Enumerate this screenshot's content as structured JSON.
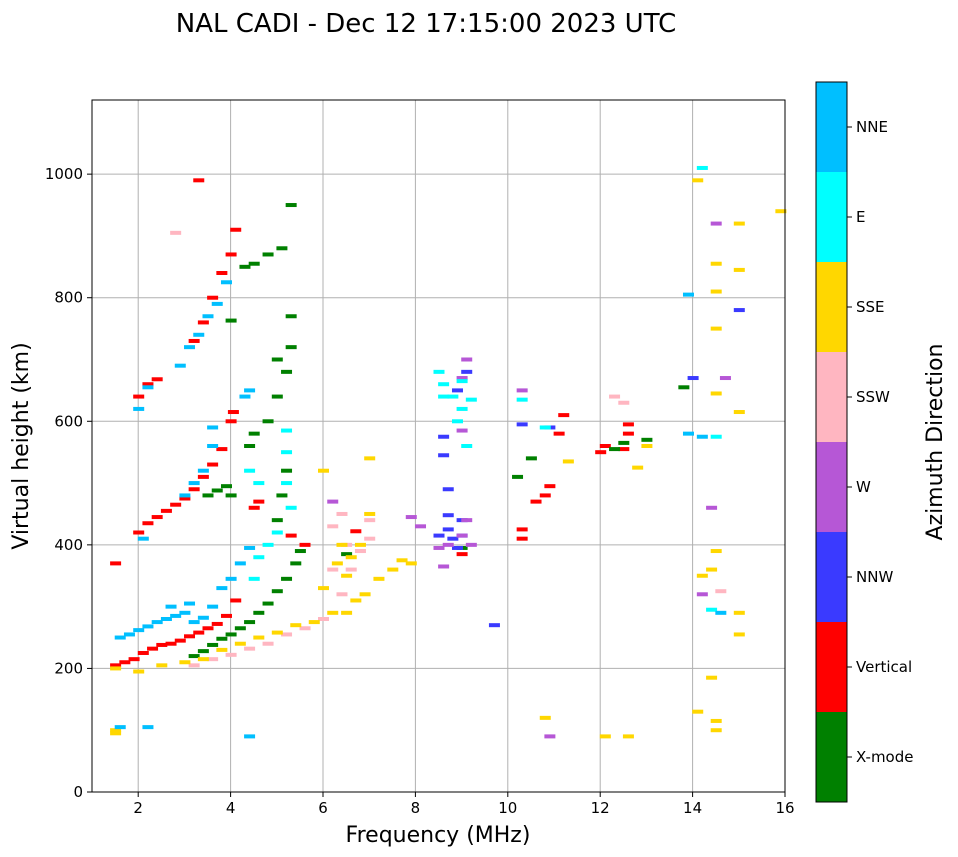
{
  "chart_data": {
    "type": "scatter",
    "title": "NAL CADI - Dec 12 17:15:00 2023 UTC",
    "xlabel": "Frequency (MHz)",
    "ylabel": "Virtual height (km)",
    "xlim": [
      1,
      16
    ],
    "ylim": [
      0,
      1120
    ],
    "xticks": [
      2,
      4,
      6,
      8,
      10,
      12,
      14,
      16
    ],
    "yticks": [
      0,
      200,
      400,
      600,
      800,
      1000
    ],
    "grid": true,
    "colorbar": {
      "label": "Azimuth Direction",
      "categories": [
        {
          "name": "X-mode",
          "color": "#008000"
        },
        {
          "name": "Vertical",
          "color": "#ff0000"
        },
        {
          "name": "NNW",
          "color": "#3a3aff"
        },
        {
          "name": "W",
          "color": "#b657d6"
        },
        {
          "name": "SSW",
          "color": "#ffb6c1"
        },
        {
          "name": "SSE",
          "color": "#ffd700"
        },
        {
          "name": "E",
          "color": "#00ffff"
        },
        {
          "name": "NNE",
          "color": "#00bfff"
        }
      ]
    },
    "series": [
      {
        "name": "Vertical",
        "points": [
          [
            1.5,
            205
          ],
          [
            1.7,
            210
          ],
          [
            1.9,
            215
          ],
          [
            2.1,
            225
          ],
          [
            2.3,
            232
          ],
          [
            2.5,
            238
          ],
          [
            2.7,
            240
          ],
          [
            2.9,
            245
          ],
          [
            3.1,
            252
          ],
          [
            3.3,
            258
          ],
          [
            3.5,
            265
          ],
          [
            3.7,
            272
          ],
          [
            3.9,
            285
          ],
          [
            4.1,
            310
          ],
          [
            2.0,
            420
          ],
          [
            2.2,
            435
          ],
          [
            2.4,
            445
          ],
          [
            2.6,
            455
          ],
          [
            2.8,
            465
          ],
          [
            3.0,
            475
          ],
          [
            3.2,
            490
          ],
          [
            3.4,
            510
          ],
          [
            3.6,
            530
          ],
          [
            3.8,
            555
          ],
          [
            4.0,
            600
          ],
          [
            4.05,
            615
          ],
          [
            2.0,
            640
          ],
          [
            2.2,
            660
          ],
          [
            2.4,
            668
          ],
          [
            3.2,
            730
          ],
          [
            3.4,
            760
          ],
          [
            3.6,
            800
          ],
          [
            3.8,
            840
          ],
          [
            4.0,
            870
          ],
          [
            4.1,
            910
          ],
          [
            4.5,
            460
          ],
          [
            4.6,
            470
          ],
          [
            5.3,
            415
          ],
          [
            5.6,
            400
          ],
          [
            10.3,
            410
          ],
          [
            10.3,
            425
          ],
          [
            10.6,
            470
          ],
          [
            10.8,
            480
          ],
          [
            10.9,
            495
          ],
          [
            11.1,
            580
          ],
          [
            11.2,
            610
          ],
          [
            12.0,
            550
          ],
          [
            12.1,
            560
          ],
          [
            12.5,
            555
          ],
          [
            12.6,
            580
          ],
          [
            12.6,
            595
          ],
          [
            1.5,
            370
          ],
          [
            6.7,
            422
          ],
          [
            9.0,
            385
          ],
          [
            3.3,
            990
          ]
        ]
      },
      {
        "name": "X-mode",
        "points": [
          [
            3.2,
            220
          ],
          [
            3.4,
            228
          ],
          [
            3.6,
            238
          ],
          [
            3.8,
            248
          ],
          [
            4.0,
            255
          ],
          [
            4.2,
            265
          ],
          [
            4.4,
            275
          ],
          [
            4.6,
            290
          ],
          [
            4.8,
            305
          ],
          [
            5.0,
            325
          ],
          [
            5.2,
            345
          ],
          [
            5.4,
            370
          ],
          [
            5.5,
            390
          ],
          [
            5.0,
            440
          ],
          [
            5.1,
            480
          ],
          [
            5.2,
            520
          ],
          [
            4.4,
            560
          ],
          [
            4.5,
            580
          ],
          [
            4.8,
            600
          ],
          [
            5.0,
            640
          ],
          [
            5.2,
            680
          ],
          [
            5.3,
            720
          ],
          [
            5.3,
            770
          ],
          [
            4.3,
            850
          ],
          [
            4.5,
            855
          ],
          [
            4.8,
            870
          ],
          [
            5.1,
            880
          ],
          [
            3.9,
            495
          ],
          [
            3.7,
            488
          ],
          [
            3.5,
            480
          ],
          [
            4.0,
            480
          ],
          [
            6.5,
            385
          ],
          [
            9.0,
            395
          ],
          [
            10.2,
            510
          ],
          [
            10.5,
            540
          ],
          [
            12.3,
            555
          ],
          [
            12.5,
            565
          ],
          [
            13.0,
            570
          ],
          [
            13.8,
            655
          ],
          [
            4.0,
            763
          ],
          [
            5.0,
            700
          ],
          [
            5.3,
            950
          ]
        ]
      },
      {
        "name": "NNW",
        "points": [
          [
            8.6,
            545
          ],
          [
            8.6,
            575
          ],
          [
            8.7,
            490
          ],
          [
            8.7,
            448
          ],
          [
            8.7,
            425
          ],
          [
            8.8,
            410
          ],
          [
            8.9,
            395
          ],
          [
            9.0,
            415
          ],
          [
            9.0,
            440
          ],
          [
            9.1,
            680
          ],
          [
            8.9,
            650
          ],
          [
            10.3,
            595
          ],
          [
            10.9,
            590
          ],
          [
            9.7,
            270
          ],
          [
            15.0,
            780
          ],
          [
            14.0,
            670
          ],
          [
            8.5,
            415
          ]
        ]
      },
      {
        "name": "W",
        "points": [
          [
            7.9,
            445
          ],
          [
            8.1,
            430
          ],
          [
            8.5,
            395
          ],
          [
            8.7,
            400
          ],
          [
            9.1,
            700
          ],
          [
            9.0,
            670
          ],
          [
            9.0,
            585
          ],
          [
            9.2,
            400
          ],
          [
            9.1,
            440
          ],
          [
            9.0,
            415
          ],
          [
            8.6,
            365
          ],
          [
            10.3,
            650
          ],
          [
            10.9,
            90
          ],
          [
            14.2,
            320
          ],
          [
            14.4,
            460
          ],
          [
            14.5,
            920
          ],
          [
            14.7,
            670
          ],
          [
            6.2,
            470
          ]
        ]
      },
      {
        "name": "SSW",
        "points": [
          [
            3.2,
            205
          ],
          [
            3.6,
            215
          ],
          [
            4.0,
            222
          ],
          [
            4.4,
            232
          ],
          [
            4.8,
            240
          ],
          [
            5.2,
            255
          ],
          [
            5.6,
            265
          ],
          [
            6.0,
            280
          ],
          [
            6.4,
            320
          ],
          [
            6.6,
            360
          ],
          [
            6.8,
            390
          ],
          [
            7.0,
            410
          ],
          [
            6.5,
            400
          ],
          [
            6.2,
            430
          ],
          [
            7.0,
            440
          ],
          [
            12.3,
            640
          ],
          [
            12.5,
            630
          ],
          [
            14.6,
            325
          ],
          [
            2.8,
            905
          ],
          [
            6.2,
            360
          ],
          [
            6.4,
            450
          ]
        ]
      },
      {
        "name": "SSE",
        "points": [
          [
            1.5,
            200
          ],
          [
            2.0,
            195
          ],
          [
            2.5,
            205
          ],
          [
            3.0,
            210
          ],
          [
            3.4,
            215
          ],
          [
            3.8,
            230
          ],
          [
            4.2,
            240
          ],
          [
            4.6,
            250
          ],
          [
            5.0,
            258
          ],
          [
            5.4,
            270
          ],
          [
            5.8,
            275
          ],
          [
            6.2,
            290
          ],
          [
            6.5,
            290
          ],
          [
            6.7,
            310
          ],
          [
            6.9,
            320
          ],
          [
            7.2,
            345
          ],
          [
            7.5,
            360
          ],
          [
            7.7,
            375
          ],
          [
            7.9,
            370
          ],
          [
            6.5,
            350
          ],
          [
            6.0,
            330
          ],
          [
            6.3,
            370
          ],
          [
            6.8,
            400
          ],
          [
            7.0,
            450
          ],
          [
            7.0,
            540
          ],
          [
            6.0,
            520
          ],
          [
            11.3,
            535
          ],
          [
            12.8,
            525
          ],
          [
            13.0,
            560
          ],
          [
            14.1,
            990
          ],
          [
            14.2,
            350
          ],
          [
            14.4,
            360
          ],
          [
            14.5,
            645
          ],
          [
            14.5,
            750
          ],
          [
            14.5,
            810
          ],
          [
            14.5,
            855
          ],
          [
            14.5,
            390
          ],
          [
            15.0,
            920
          ],
          [
            15.0,
            845
          ],
          [
            15.0,
            615
          ],
          [
            15.0,
            290
          ],
          [
            15.0,
            255
          ],
          [
            14.5,
            100
          ],
          [
            14.5,
            115
          ],
          [
            14.4,
            185
          ],
          [
            14.1,
            130
          ],
          [
            15.9,
            940
          ],
          [
            12.1,
            90
          ],
          [
            12.6,
            90
          ],
          [
            10.8,
            120
          ],
          [
            1.5,
            100
          ],
          [
            1.5,
            95
          ],
          [
            6.4,
            400
          ],
          [
            6.6,
            380
          ]
        ]
      },
      {
        "name": "E",
        "points": [
          [
            8.5,
            680
          ],
          [
            8.6,
            660
          ],
          [
            8.6,
            640
          ],
          [
            8.8,
            640
          ],
          [
            8.9,
            600
          ],
          [
            9.1,
            560
          ],
          [
            9.2,
            635
          ],
          [
            9.0,
            665
          ],
          [
            5.3,
            460
          ],
          [
            5.0,
            420
          ],
          [
            4.8,
            400
          ],
          [
            4.6,
            380
          ],
          [
            4.5,
            345
          ],
          [
            4.4,
            520
          ],
          [
            4.6,
            500
          ],
          [
            5.2,
            500
          ],
          [
            5.2,
            550
          ],
          [
            5.2,
            585
          ],
          [
            14.4,
            295
          ],
          [
            14.5,
            575
          ],
          [
            14.2,
            1010
          ],
          [
            10.8,
            590
          ],
          [
            9.0,
            620
          ],
          [
            10.3,
            635
          ]
        ]
      },
      {
        "name": "NNE",
        "points": [
          [
            1.6,
            250
          ],
          [
            1.8,
            255
          ],
          [
            2.0,
            262
          ],
          [
            2.2,
            268
          ],
          [
            2.4,
            275
          ],
          [
            2.6,
            280
          ],
          [
            2.8,
            285
          ],
          [
            3.0,
            290
          ],
          [
            3.2,
            275
          ],
          [
            3.4,
            282
          ],
          [
            3.6,
            300
          ],
          [
            3.8,
            330
          ],
          [
            4.0,
            345
          ],
          [
            4.2,
            370
          ],
          [
            4.4,
            395
          ],
          [
            2.1,
            410
          ],
          [
            3.0,
            480
          ],
          [
            3.2,
            500
          ],
          [
            3.4,
            520
          ],
          [
            3.6,
            560
          ],
          [
            3.6,
            590
          ],
          [
            2.0,
            620
          ],
          [
            2.2,
            655
          ],
          [
            2.9,
            690
          ],
          [
            3.1,
            720
          ],
          [
            3.3,
            740
          ],
          [
            3.5,
            770
          ],
          [
            3.7,
            790
          ],
          [
            3.9,
            825
          ],
          [
            4.3,
            640
          ],
          [
            4.4,
            650
          ],
          [
            1.6,
            105
          ],
          [
            2.2,
            105
          ],
          [
            4.4,
            90
          ],
          [
            13.9,
            580
          ],
          [
            13.9,
            805
          ],
          [
            14.2,
            575
          ],
          [
            14.6,
            290
          ],
          [
            2.7,
            300
          ],
          [
            3.1,
            305
          ]
        ]
      }
    ]
  }
}
